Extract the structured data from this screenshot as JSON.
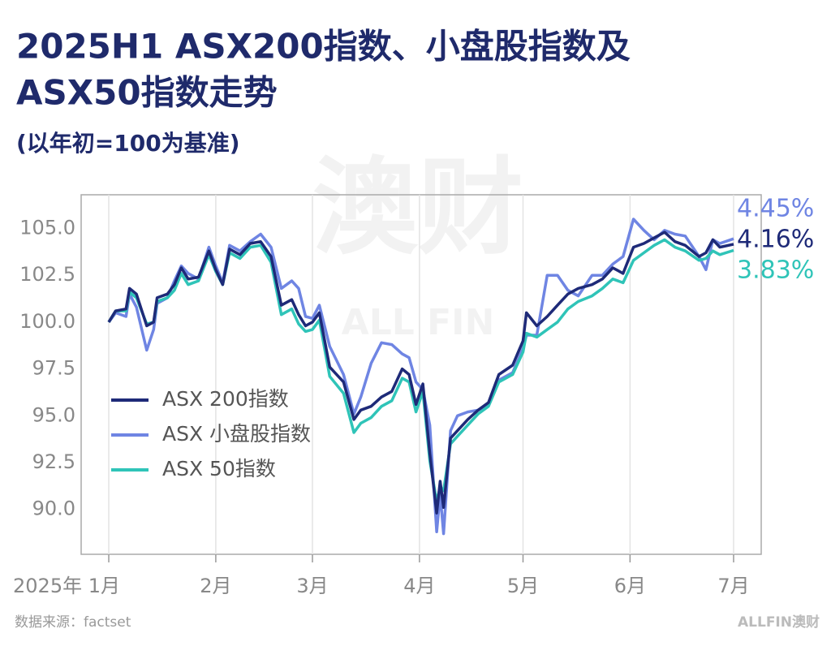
{
  "chart_data": {
    "type": "line",
    "title_lines": [
      "2025H1 ASX200指数、小盘股指数及",
      "ASX50指数走势"
    ],
    "subtitle": "(以年初=100为基准)",
    "source": "数据来源：factset",
    "logo": "ALLFIN澳财",
    "watermark": "澳财",
    "watermark_sub": "ALL FIN",
    "x": [
      0,
      2,
      5,
      6,
      8,
      11,
      13,
      14,
      17,
      19,
      21,
      23,
      26,
      29,
      31,
      33,
      35,
      38,
      41,
      44,
      47,
      50,
      53,
      55,
      57,
      59,
      61,
      64,
      68,
      71,
      73,
      76,
      79,
      82,
      85,
      87,
      89,
      91,
      93,
      95,
      96,
      97,
      99,
      101,
      104,
      107,
      110,
      113,
      117,
      120,
      121,
      124,
      127,
      130,
      133,
      136,
      140,
      143,
      146,
      149,
      152,
      155,
      158,
      161,
      164,
      167,
      171,
      173,
      175,
      177,
      181
    ],
    "xlim": [
      -8,
      189
    ],
    "xticks": [
      {
        "value": 0,
        "label": "2025年 1月"
      },
      {
        "value": 31,
        "label": "2月"
      },
      {
        "value": 59,
        "label": "3月"
      },
      {
        "value": 90,
        "label": "4月"
      },
      {
        "value": 120,
        "label": "5月"
      },
      {
        "value": 151,
        "label": "6月"
      },
      {
        "value": 181,
        "label": "7月"
      }
    ],
    "ylim": [
      87.6,
      106.8
    ],
    "yticks": [
      {
        "value": 90,
        "label": "90.0"
      },
      {
        "value": 92.5,
        "label": "92.5"
      },
      {
        "value": 95,
        "label": "95.0"
      },
      {
        "value": 97.5,
        "label": "97.5"
      },
      {
        "value": 100,
        "label": "100.0"
      },
      {
        "value": 102.5,
        "label": "102.5"
      },
      {
        "value": 105,
        "label": "105.0"
      }
    ],
    "grid": true,
    "legend": "left",
    "series": [
      {
        "name": "ASX 小盘股指数",
        "color": "#6f85e3",
        "end_label": "4.45%",
        "values": [
          100.0,
          100.5,
          100.3,
          101.5,
          100.8,
          98.5,
          99.6,
          101.0,
          101.3,
          102.2,
          103.0,
          102.6,
          102.3,
          104.0,
          103.0,
          102.1,
          104.1,
          103.8,
          104.3,
          104.7,
          104.0,
          101.8,
          102.2,
          101.8,
          100.3,
          100.2,
          100.9,
          98.7,
          97.2,
          95.1,
          96.0,
          97.8,
          98.9,
          98.8,
          98.3,
          98.1,
          96.8,
          96.4,
          94.5,
          88.8,
          90.8,
          88.7,
          94.2,
          95.0,
          95.2,
          95.3,
          95.6,
          96.9,
          97.3,
          98.6,
          99.3,
          99.3,
          102.5,
          102.5,
          101.7,
          101.4,
          102.5,
          102.5,
          103.1,
          103.5,
          105.5,
          104.9,
          104.4,
          104.9,
          104.7,
          104.6,
          103.5,
          102.8,
          104.4,
          104.2,
          104.45
        ]
      },
      {
        "name": "ASX 50指数",
        "color": "#2fc4b8",
        "end_label": "3.83%",
        "values": [
          100.0,
          100.6,
          100.6,
          101.6,
          101.3,
          99.9,
          100.0,
          101.1,
          101.3,
          101.7,
          102.6,
          102.0,
          102.2,
          103.6,
          102.7,
          102.0,
          103.7,
          103.4,
          104.0,
          104.1,
          103.2,
          100.4,
          100.7,
          99.9,
          99.5,
          99.6,
          100.1,
          97.1,
          96.2,
          94.1,
          94.6,
          94.9,
          95.5,
          95.8,
          97.0,
          96.8,
          95.2,
          96.3,
          92.6,
          90.4,
          91.2,
          91.0,
          93.5,
          93.9,
          94.5,
          95.1,
          95.5,
          96.8,
          97.2,
          98.4,
          99.4,
          99.2,
          99.6,
          100.0,
          100.7,
          101.1,
          101.4,
          101.8,
          102.3,
          102.1,
          103.3,
          103.7,
          104.1,
          104.4,
          104.0,
          103.8,
          103.3,
          103.4,
          103.8,
          103.6,
          103.83
        ]
      },
      {
        "name": "ASX 200指数",
        "color": "#1e2a78",
        "end_label": "4.16%",
        "values": [
          100.0,
          100.6,
          100.7,
          101.8,
          101.5,
          99.8,
          100.0,
          101.3,
          101.5,
          102.0,
          102.9,
          102.3,
          102.4,
          103.8,
          102.8,
          102.0,
          103.9,
          103.6,
          104.2,
          104.3,
          103.5,
          100.9,
          101.2,
          100.4,
          99.8,
          100.0,
          100.5,
          97.6,
          96.8,
          94.8,
          95.3,
          95.5,
          96.0,
          96.3,
          97.5,
          97.2,
          95.6,
          96.7,
          93.0,
          89.8,
          91.5,
          90.1,
          93.8,
          94.2,
          94.8,
          95.3,
          95.7,
          97.2,
          97.7,
          99.0,
          100.5,
          99.8,
          100.3,
          100.9,
          101.5,
          101.8,
          102.0,
          102.3,
          102.9,
          102.6,
          104.0,
          104.2,
          104.5,
          104.8,
          104.3,
          104.1,
          103.5,
          103.7,
          104.4,
          104.0,
          104.16
        ]
      }
    ]
  }
}
